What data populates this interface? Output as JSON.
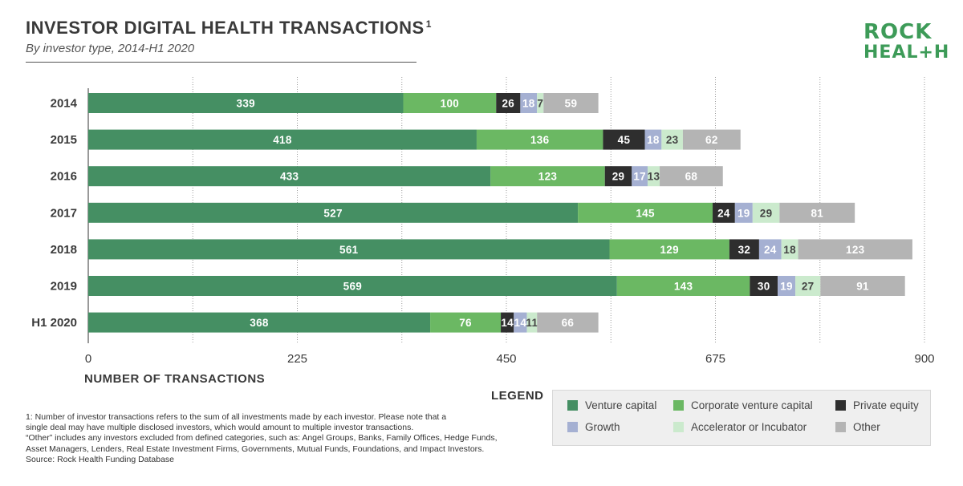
{
  "header": {
    "title": "INVESTOR DIGITAL HEALTH TRANSACTIONS",
    "title_sup": "1",
    "subtitle": "By investor type, 2014-H1 2020"
  },
  "logo": {
    "line1": "ROCK",
    "line2": "HEAL+H"
  },
  "chart_data": {
    "type": "bar",
    "orientation": "horizontal",
    "stacked": true,
    "categories": [
      "2014",
      "2015",
      "2016",
      "2017",
      "2018",
      "2019",
      "H1 2020"
    ],
    "series": [
      {
        "name": "Venture capital",
        "color": "#458f63",
        "label_color": "#ffffff",
        "values": [
          339,
          418,
          433,
          527,
          561,
          569,
          368
        ]
      },
      {
        "name": "Corporate venture capital",
        "color": "#6bb863",
        "label_color": "#ffffff",
        "values": [
          100,
          136,
          123,
          145,
          129,
          143,
          76
        ]
      },
      {
        "name": "Private equity",
        "color": "#2e2e2e",
        "label_color": "#ffffff",
        "values": [
          26,
          45,
          29,
          24,
          32,
          30,
          14
        ]
      },
      {
        "name": "Growth",
        "color": "#a5b0d2",
        "label_color": "#ffffff",
        "values": [
          18,
          18,
          17,
          19,
          24,
          19,
          14
        ]
      },
      {
        "name": "Accelerator or Incubator",
        "color": "#cbeacd",
        "label_color": "#444444",
        "values": [
          7,
          23,
          13,
          29,
          18,
          27,
          11
        ]
      },
      {
        "name": "Other",
        "color": "#b4b4b4",
        "label_color": "#ffffff",
        "values": [
          59,
          62,
          68,
          81,
          123,
          91,
          66
        ]
      }
    ],
    "xlim": [
      0,
      900
    ],
    "xticks": [
      0,
      225,
      450,
      675,
      900
    ],
    "xlabel": "NUMBER OF TRANSACTIONS",
    "ylabel": "",
    "grid": "dotted vertical",
    "legend_title": "LEGEND",
    "legend_position": "bottom-right"
  },
  "footnotes": [
    "1: Number of investor transactions refers to the sum of all investments made by each investor. Please note that a",
    "single deal may have multiple disclosed investors, which would amount to multiple investor transactions.",
    "“Other” includes any investors excluded from defined categories, such as: Angel Groups, Banks, Family Offices, Hedge Funds,",
    "Asset Managers, Lenders, Real Estate Investment Firms, Governments, Mutual Funds, Foundations, and Impact Investors.",
    "Source: Rock Health Funding Database"
  ]
}
